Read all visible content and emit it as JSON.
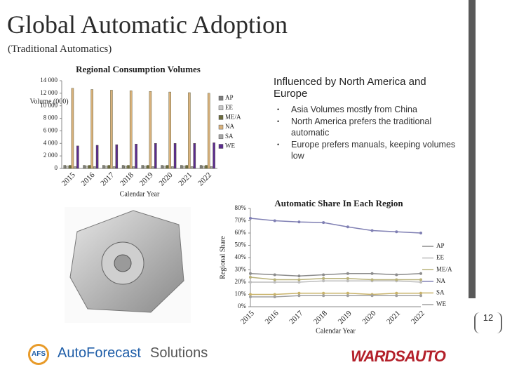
{
  "header": {
    "title": "Global Automatic Adoption",
    "subtitle": "(Traditional Automatics)"
  },
  "callout": {
    "heading": "Influenced by North America and Europe",
    "bullets": [
      "Asia Volumes mostly from China",
      "North America prefers the traditional automatic",
      "Europe prefers manuals, keeping volumes low"
    ]
  },
  "footer": {
    "logo_mark": "AFS",
    "logo_brand": "AutoForecast",
    "logo_suffix": "Solutions",
    "partner": "WARDSAUTO",
    "page_number": "12"
  },
  "chart_data": [
    {
      "type": "bar",
      "title": "Regional Consumption Volumes",
      "y_label": "Volume (000)",
      "x_label": "Calendar Year",
      "categories": [
        "2015",
        "2016",
        "2017",
        "2018",
        "2019",
        "2020",
        "2021",
        "2022"
      ],
      "series": [
        {
          "name": "AP",
          "color": "#7f7f7f",
          "values": [
            500,
            500,
            500,
            500,
            500,
            500,
            500,
            500
          ]
        },
        {
          "name": "EE",
          "color": "#c8c8c8",
          "values": [
            400,
            400,
            400,
            400,
            400,
            400,
            400,
            400
          ]
        },
        {
          "name": "ME/A",
          "color": "#6b6b3a",
          "values": [
            500,
            500,
            500,
            500,
            500,
            500,
            500,
            500
          ]
        },
        {
          "name": "NA",
          "color": "#d9b27c",
          "values": [
            12800,
            12600,
            12500,
            12400,
            12300,
            12200,
            12100,
            12000
          ]
        },
        {
          "name": "SA",
          "color": "#a6a6a6",
          "values": [
            300,
            300,
            300,
            300,
            300,
            300,
            300,
            300
          ]
        },
        {
          "name": "WE",
          "color": "#5b2c8f",
          "values": [
            3600,
            3700,
            3800,
            3900,
            4000,
            4000,
            4000,
            4100
          ]
        }
      ],
      "ylim": [
        0,
        14000
      ],
      "yticks": [
        0,
        {
          "value": 2000,
          "label": "2 000"
        },
        {
          "value": 4000,
          "label": "4 000"
        },
        {
          "value": 6000,
          "label": "6 000"
        },
        {
          "value": 8000,
          "label": "8 000"
        },
        {
          "value": 10000,
          "label": "10 000"
        },
        {
          "value": 12000,
          "label": "12 000"
        },
        {
          "value": 14000,
          "label": "14 000"
        }
      ],
      "legend": "right"
    },
    {
      "type": "line",
      "title": "Automatic Share In Each Region",
      "y_label": "Regional Share",
      "x_label": "Calendar Year",
      "categories": [
        "2015",
        "2016",
        "2017",
        "2018",
        "2019",
        "2020",
        "2021",
        "2022"
      ],
      "series": [
        {
          "name": "AP",
          "color": "#8c8c8c",
          "values": [
            27,
            26,
            25,
            26,
            27,
            27,
            26,
            27
          ]
        },
        {
          "name": "EE",
          "color": "#bdbdbd",
          "values": [
            20,
            20,
            20,
            21,
            21,
            21,
            21,
            20
          ]
        },
        {
          "name": "ME/A",
          "color": "#b9b27a",
          "values": [
            24,
            22,
            22,
            23,
            23,
            22,
            22,
            22
          ]
        },
        {
          "name": "NA",
          "color": "#7f7fb3",
          "values": [
            72,
            70,
            69,
            68.5,
            65,
            62,
            61,
            60
          ]
        },
        {
          "name": "SA",
          "color": "#c9b36a",
          "values": [
            10,
            10,
            11,
            11,
            11,
            10,
            11,
            11
          ]
        },
        {
          "name": "WE",
          "color": "#a0a0a0",
          "values": [
            8,
            8,
            9,
            9,
            9,
            9,
            9,
            9
          ]
        }
      ],
      "ylim": [
        0,
        80
      ],
      "yticks": [
        {
          "value": 0,
          "label": "0%"
        },
        {
          "value": 10,
          "label": "10%"
        },
        {
          "value": 20,
          "label": "20%"
        },
        {
          "value": 30,
          "label": "30%"
        },
        {
          "value": 40,
          "label": "40%"
        },
        {
          "value": 50,
          "label": "50%"
        },
        {
          "value": 60,
          "label": "60%"
        },
        {
          "value": 70,
          "label": "70%"
        },
        {
          "value": 80,
          "label": "80%"
        }
      ],
      "legend": "right"
    }
  ]
}
